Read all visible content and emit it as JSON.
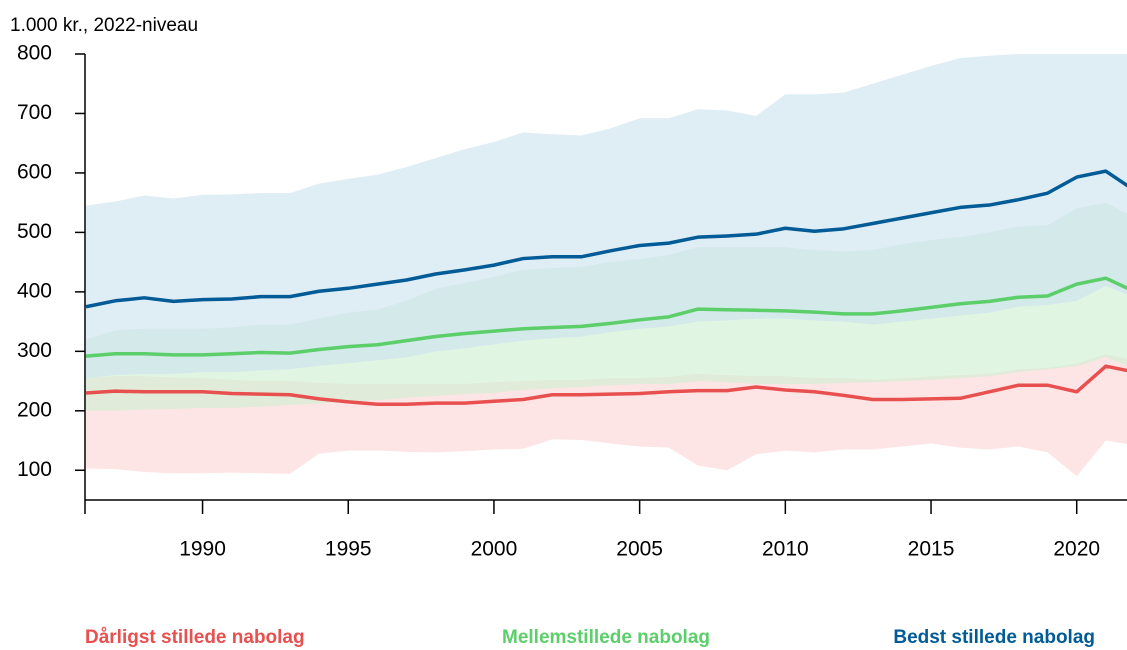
{
  "chart_data": {
    "type": "line-band",
    "y_label": "1.000 kr., 2022-niveau",
    "x": [
      1986,
      1987,
      1988,
      1989,
      1990,
      1991,
      1992,
      1993,
      1994,
      1995,
      1996,
      1997,
      1998,
      1999,
      2000,
      2001,
      2002,
      2003,
      2004,
      2005,
      2006,
      2007,
      2008,
      2009,
      2010,
      2011,
      2012,
      2013,
      2014,
      2015,
      2016,
      2017,
      2018,
      2019,
      2020,
      2021,
      2022
    ],
    "xlim": [
      1986,
      2022
    ],
    "xticks": [
      1990,
      1995,
      2000,
      2005,
      2010,
      2015,
      2020
    ],
    "ylim": [
      50,
      800
    ],
    "yticks": [
      100,
      200,
      300,
      400,
      500,
      600,
      700,
      800
    ],
    "series": [
      {
        "name": "Dårligst stillede nabolag",
        "color": "#e8504f",
        "band_color": "#fbd3d3",
        "values": [
          230,
          233,
          232,
          232,
          232,
          229,
          228,
          227,
          220,
          215,
          211,
          211,
          213,
          213,
          216,
          219,
          227,
          227,
          228,
          229,
          232,
          234,
          234,
          240,
          235,
          232,
          226,
          219,
          219,
          220,
          221,
          232,
          243,
          243,
          232,
          275,
          265
        ],
        "upper": [
          255,
          258,
          258,
          256,
          255,
          252,
          250,
          250,
          247,
          245,
          245,
          245,
          245,
          245,
          248,
          250,
          252,
          252,
          255,
          255,
          257,
          262,
          260,
          258,
          258,
          255,
          255,
          252,
          255,
          258,
          260,
          262,
          270,
          272,
          280,
          295,
          285
        ],
        "lower": [
          103,
          102,
          97,
          95,
          95,
          96,
          95,
          94,
          128,
          133,
          133,
          131,
          130,
          132,
          135,
          136,
          152,
          151,
          145,
          140,
          138,
          108,
          100,
          127,
          133,
          130,
          135,
          135,
          140,
          145,
          138,
          135,
          140,
          130,
          90,
          150,
          142
        ]
      },
      {
        "name": "Mellemstillede nabolag",
        "color": "#5cce6a",
        "band_color": "#cdeed0",
        "values": [
          292,
          296,
          296,
          294,
          294,
          296,
          298,
          297,
          303,
          308,
          311,
          318,
          325,
          330,
          334,
          338,
          340,
          342,
          347,
          353,
          358,
          371,
          370,
          369,
          368,
          366,
          363,
          363,
          368,
          374,
          380,
          384,
          391,
          393,
          413,
          423,
          400
        ],
        "upper": [
          320,
          335,
          338,
          338,
          338,
          340,
          345,
          345,
          355,
          365,
          370,
          385,
          405,
          415,
          425,
          437,
          440,
          442,
          450,
          455,
          462,
          475,
          475,
          475,
          475,
          470,
          468,
          470,
          480,
          487,
          492,
          500,
          510,
          512,
          540,
          550,
          525
        ],
        "lower": [
          200,
          200,
          202,
          203,
          205,
          205,
          207,
          210,
          212,
          215,
          218,
          222,
          225,
          228,
          230,
          235,
          238,
          240,
          243,
          245,
          245,
          250,
          248,
          245,
          245,
          245,
          247,
          248,
          250,
          252,
          255,
          258,
          265,
          270,
          275,
          290,
          270
        ]
      },
      {
        "name": "Bedst stillede nabolag",
        "color": "#005b96",
        "band_color": "#c9e1ee",
        "values": [
          375,
          385,
          390,
          384,
          387,
          388,
          392,
          392,
          401,
          406,
          413,
          420,
          430,
          437,
          445,
          456,
          459,
          459,
          469,
          478,
          482,
          492,
          494,
          497,
          507,
          502,
          506,
          515,
          524,
          533,
          542,
          546,
          555,
          566,
          593,
          603,
          570
        ],
        "upper": [
          545,
          552,
          562,
          557,
          563,
          564,
          566,
          566,
          582,
          590,
          597,
          610,
          625,
          640,
          652,
          668,
          665,
          663,
          675,
          692,
          692,
          707,
          705,
          696,
          732,
          732,
          735,
          750,
          765,
          780,
          793,
          797,
          800,
          800,
          800,
          800,
          800
        ],
        "lower": [
          255,
          260,
          262,
          262,
          265,
          265,
          268,
          270,
          276,
          280,
          285,
          290,
          300,
          305,
          312,
          318,
          322,
          325,
          332,
          338,
          342,
          350,
          352,
          355,
          355,
          352,
          350,
          345,
          350,
          355,
          360,
          365,
          375,
          378,
          385,
          410,
          390
        ]
      }
    ]
  }
}
